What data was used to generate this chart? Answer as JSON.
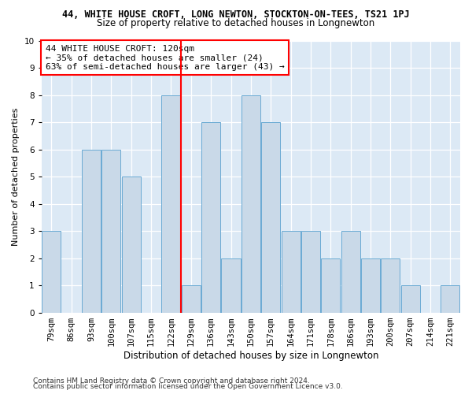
{
  "title_line1": "44, WHITE HOUSE CROFT, LONG NEWTON, STOCKTON-ON-TEES, TS21 1PJ",
  "title_line2": "Size of property relative to detached houses in Longnewton",
  "xlabel": "Distribution of detached houses by size in Longnewton",
  "ylabel": "Number of detached properties",
  "categories": [
    "79sqm",
    "86sqm",
    "93sqm",
    "100sqm",
    "107sqm",
    "115sqm",
    "122sqm",
    "129sqm",
    "136sqm",
    "143sqm",
    "150sqm",
    "157sqm",
    "164sqm",
    "171sqm",
    "178sqm",
    "186sqm",
    "193sqm",
    "200sqm",
    "207sqm",
    "214sqm",
    "221sqm"
  ],
  "values": [
    3,
    0,
    6,
    6,
    5,
    0,
    8,
    1,
    7,
    2,
    8,
    7,
    3,
    3,
    2,
    3,
    2,
    2,
    1,
    0,
    1
  ],
  "bar_color": "#c9d9e8",
  "bar_edge_color": "#6aaad4",
  "highlight_index": 6,
  "vline_color": "red",
  "annotation_text": "44 WHITE HOUSE CROFT: 120sqm\n← 35% of detached houses are smaller (24)\n63% of semi-detached houses are larger (43) →",
  "annotation_box_color": "white",
  "annotation_box_edge": "red",
  "ylim": [
    0,
    10
  ],
  "yticks": [
    0,
    1,
    2,
    3,
    4,
    5,
    6,
    7,
    8,
    9,
    10
  ],
  "background_color": "#dce9f5",
  "footer_line1": "Contains HM Land Registry data © Crown copyright and database right 2024.",
  "footer_line2": "Contains public sector information licensed under the Open Government Licence v3.0.",
  "title_fontsize": 8.5,
  "subtitle_fontsize": 8.5,
  "xlabel_fontsize": 8.5,
  "ylabel_fontsize": 8,
  "tick_fontsize": 7.5,
  "annot_fontsize": 8,
  "footer_fontsize": 6.5
}
